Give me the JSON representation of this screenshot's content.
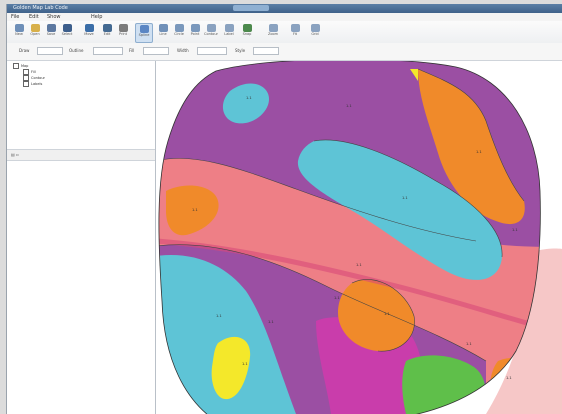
{
  "window": {
    "title": "Golden Map Lab Code",
    "center_tab": ""
  },
  "menu": {
    "items": [
      "File",
      "Edit",
      "Show",
      "Help"
    ]
  },
  "toolbar": {
    "tools": [
      {
        "label": "New",
        "icon": "new-file-icon",
        "color": "#6e8fb8"
      },
      {
        "label": "Open",
        "icon": "open-folder-icon",
        "color": "#d8b04a"
      },
      {
        "label": "Save",
        "icon": "save-icon",
        "color": "#5c78a0"
      },
      {
        "label": "Select",
        "icon": "select-pointer-icon",
        "color": "#3d5f8c"
      },
      {
        "label": "Move",
        "icon": "move-icon",
        "color": "#3b6ea8"
      },
      {
        "label": "Edit",
        "icon": "edit-icon",
        "color": "#446a92"
      },
      {
        "label": "Print",
        "icon": "print-icon",
        "color": "#7c7c7c"
      },
      {
        "label": "Spline",
        "icon": "spline-icon",
        "color": "#5a86c4"
      },
      {
        "label": "Line",
        "icon": "line-icon",
        "color": "#7090b8"
      },
      {
        "label": "Circle",
        "icon": "circle-icon",
        "color": "#7a98bc"
      },
      {
        "label": "Point",
        "icon": "point-icon",
        "color": "#7a98bc"
      },
      {
        "label": "Contour",
        "icon": "contour-icon",
        "color": "#8aa2c0"
      },
      {
        "label": "Label",
        "icon": "label-icon",
        "color": "#8aa2c0"
      },
      {
        "label": "Snap",
        "icon": "snap-icon",
        "color": "#4d8a4d"
      },
      {
        "label": "Zoom",
        "icon": "zoom-icon",
        "color": "#8aa2c0"
      },
      {
        "label": "Fit",
        "icon": "fit-icon",
        "color": "#8aa2c0"
      },
      {
        "label": "Grid",
        "icon": "grid-icon",
        "color": "#8aa2c0"
      }
    ]
  },
  "propbar": {
    "labels": [
      "Draw",
      "Outline",
      "Fill",
      "Width",
      "Style"
    ]
  },
  "sidebar": {
    "tree": [
      "Map",
      "Fill",
      "Contour",
      "Labels"
    ],
    "split_label": ""
  },
  "map": {
    "region_labels": [
      "1.1",
      "1.1",
      "1.1",
      "1.1",
      "1.1",
      "1.1",
      "1.1",
      "1.1",
      "1.1",
      "1.1",
      "1.1",
      "1.1",
      "1.1",
      "1.1"
    ]
  },
  "colors": {
    "purple": "#9b4fa3",
    "magenta": "#c93dab",
    "cyan": "#5ec4d6",
    "orange": "#f08a2a",
    "salmon": "#ee7f86",
    "pink_light": "#f6c7c7",
    "green": "#5fbf4a",
    "yellow": "#f4e82a"
  }
}
